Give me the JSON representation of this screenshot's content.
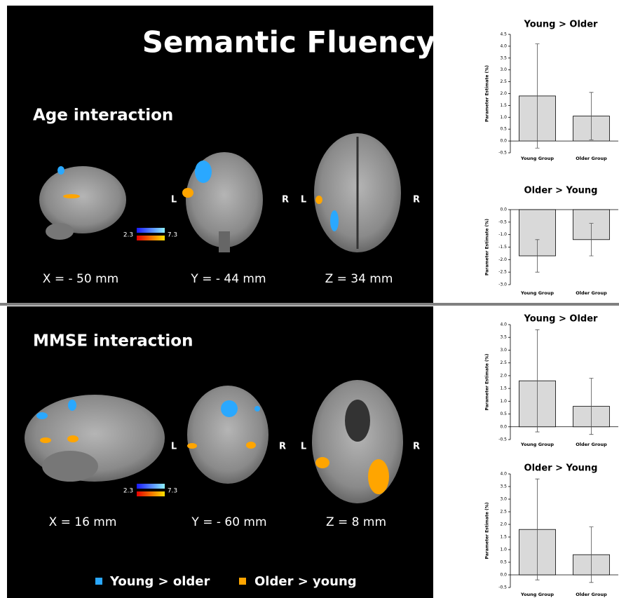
{
  "figure": {
    "title": "Semantic Fluency",
    "panels": [
      {
        "heading": "Age interaction",
        "views": [
          "X = - 50 mm",
          "Y = - 44 mm",
          "Z = 34 mm"
        ],
        "sides": [
          "L",
          "R",
          "L",
          "R"
        ],
        "colorbar": [
          "2.3",
          "7.3"
        ]
      },
      {
        "heading": "MMSE interaction",
        "views": [
          "X = 16 mm",
          "Y = - 60 mm",
          "Z = 8 mm"
        ],
        "sides": [
          "L",
          "R",
          "L",
          "R"
        ],
        "colorbar": [
          "2.3",
          "7.3"
        ]
      }
    ],
    "legend": [
      "Young > older",
      "Older > young"
    ]
  },
  "chart_data": [
    {
      "type": "bar",
      "title": "Young > Older",
      "y_label": "Parameter Estimate (%)",
      "categories": [
        "Young Group",
        "Older Group"
      ],
      "values": [
        1.9,
        1.05
      ],
      "errors": [
        2.2,
        1.0
      ],
      "color": "#d9d9d9",
      "ylim": [
        -0.5,
        4.5
      ],
      "yticks": [
        {
          "value": 4.5,
          "label": "4.5"
        },
        {
          "value": 4,
          "label": "4.0"
        },
        {
          "value": 3.5,
          "label": "3.5"
        },
        {
          "value": 3,
          "label": "3.0"
        },
        {
          "value": 2.5,
          "label": "2.5"
        },
        {
          "value": 2,
          "label": "2.0"
        },
        {
          "value": 1.5,
          "label": "1.5"
        },
        {
          "value": 1,
          "label": "1.0"
        },
        {
          "value": 0.5,
          "label": "0.5"
        },
        {
          "value": 0,
          "label": "0.0"
        },
        {
          "value": -0.5,
          "label": "-0.5"
        }
      ]
    },
    {
      "type": "bar",
      "title": "Older > Young",
      "y_label": "Parameter Estimate (%)",
      "categories": [
        "Young Group",
        "Older Group"
      ],
      "values": [
        -1.85,
        -1.2
      ],
      "errors": [
        0.65,
        0.65
      ],
      "color": "#d9d9d9",
      "ylim": [
        -3,
        0
      ],
      "yticks": [
        {
          "value": 0,
          "label": "0.0"
        },
        {
          "value": -0.5,
          "label": "-0.5"
        },
        {
          "value": -1,
          "label": "-1.0"
        },
        {
          "value": -1.5,
          "label": "-1.5"
        },
        {
          "value": -2,
          "label": "-2.0"
        },
        {
          "value": -2.5,
          "label": "-2.5"
        },
        {
          "value": -3,
          "label": "-3.0"
        }
      ]
    },
    {
      "type": "bar",
      "title": "Young > Older",
      "y_label": "Parameter Estimate (%)",
      "categories": [
        "Young Group",
        "Older Group"
      ],
      "values": [
        1.8,
        0.8
      ],
      "errors": [
        2.0,
        1.1
      ],
      "color": "#d9d9d9",
      "ylim": [
        -0.5,
        4
      ],
      "yticks": [
        {
          "value": 4,
          "label": "4.0"
        },
        {
          "value": 3.5,
          "label": "3.5"
        },
        {
          "value": 3,
          "label": "3.0"
        },
        {
          "value": 2.5,
          "label": "2.5"
        },
        {
          "value": 2,
          "label": "2.0"
        },
        {
          "value": 1.5,
          "label": "1.5"
        },
        {
          "value": 1,
          "label": "1.0"
        },
        {
          "value": 0.5,
          "label": "0.5"
        },
        {
          "value": 0,
          "label": "0.0"
        },
        {
          "value": -0.5,
          "label": "-0.5"
        }
      ]
    },
    {
      "type": "bar",
      "title": "Older > Young",
      "y_label": "Parameter Estimate (%)",
      "categories": [
        "Young Group",
        "Older Group"
      ],
      "values": [
        1.8,
        0.8
      ],
      "errors": [
        2.0,
        1.1
      ],
      "color": "#d9d9d9",
      "ylim": [
        -0.5,
        4
      ],
      "yticks": [
        {
          "value": 4,
          "label": "4.0"
        },
        {
          "value": 3.5,
          "label": "3.5"
        },
        {
          "value": 3,
          "label": "3.0"
        },
        {
          "value": 2.5,
          "label": "2.5"
        },
        {
          "value": 2,
          "label": "2.0"
        },
        {
          "value": 1.5,
          "label": "1.5"
        },
        {
          "value": 1,
          "label": "1.0"
        },
        {
          "value": 0.5,
          "label": "0.5"
        },
        {
          "value": 0,
          "label": "0.0"
        },
        {
          "value": -0.5,
          "label": "-0.5"
        }
      ]
    }
  ]
}
